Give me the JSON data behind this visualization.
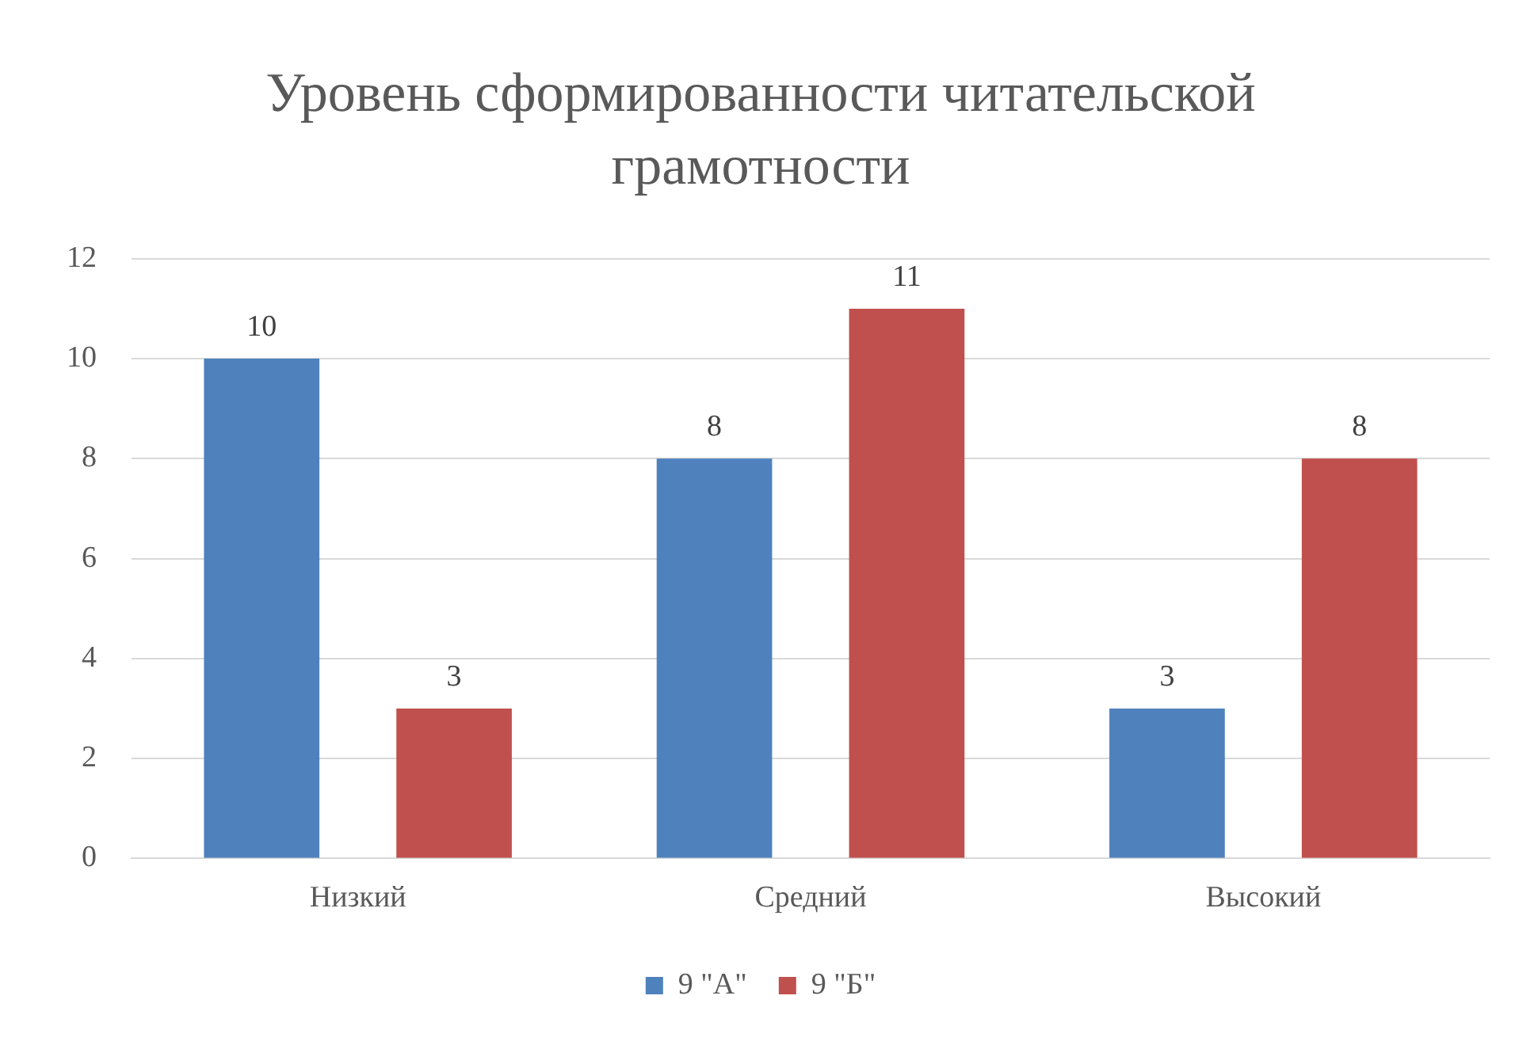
{
  "chart_data": {
    "type": "bar",
    "title": "Уровень сформированности читательской грамотности",
    "categories": [
      "Низкий",
      "Средний",
      "Высокий"
    ],
    "series": [
      {
        "name": "9 \"А\"",
        "color": "#4f81bd",
        "values": [
          10,
          8,
          3
        ]
      },
      {
        "name": "9 \"Б\"",
        "color": "#c0504d",
        "values": [
          3,
          11,
          8
        ]
      }
    ],
    "ylim": [
      0,
      12
    ],
    "yticks": [
      0,
      2,
      4,
      6,
      8,
      10,
      12
    ],
    "grid": "y",
    "legend": "bottom",
    "data_labels": true
  }
}
